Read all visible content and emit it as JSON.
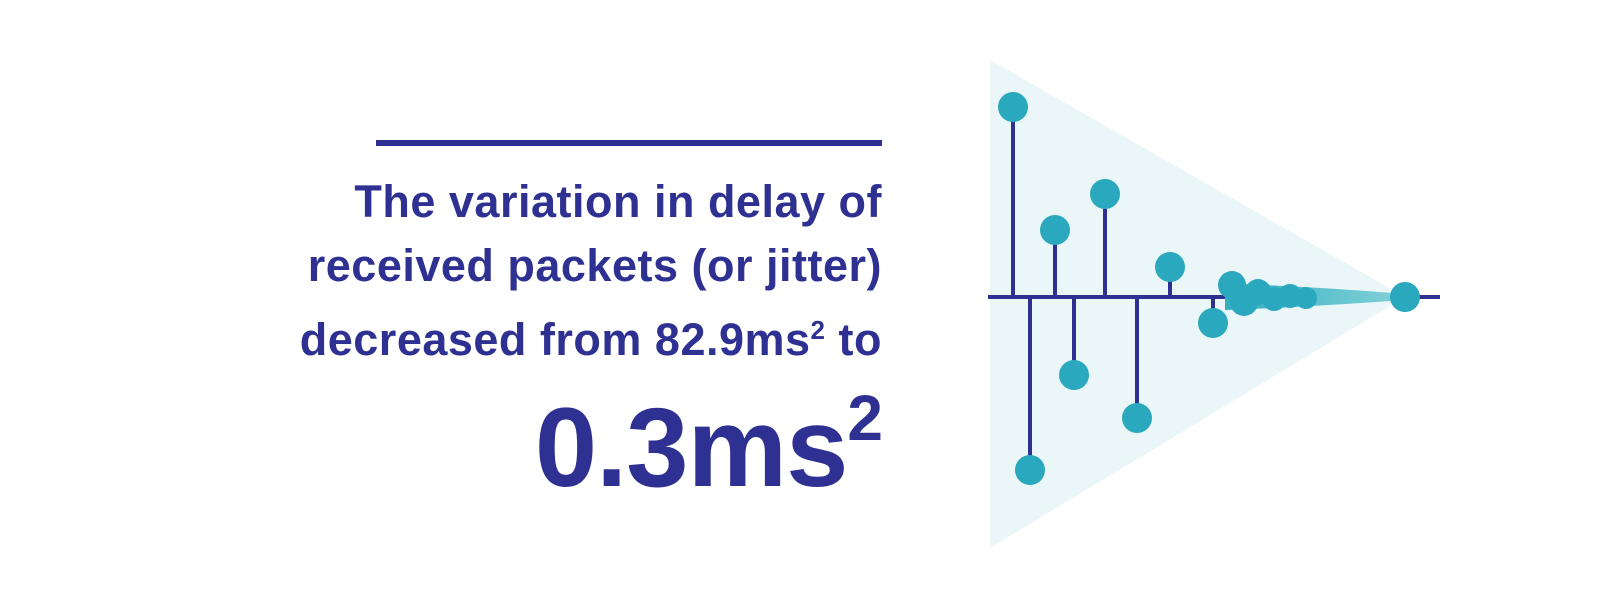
{
  "headline": {
    "line1": "The variation in delay of",
    "line2": "received packets (or jitter)",
    "line3_prefix": "decreased from 82.9ms",
    "line3_sup": "2",
    "line3_suffix": " to",
    "big_value": "0.3ms",
    "big_sup": "2"
  },
  "graphic": {
    "colors": {
      "stem": "#2e3191",
      "dot": "#2aa8be",
      "cone": "#eaf6f7"
    }
  }
}
